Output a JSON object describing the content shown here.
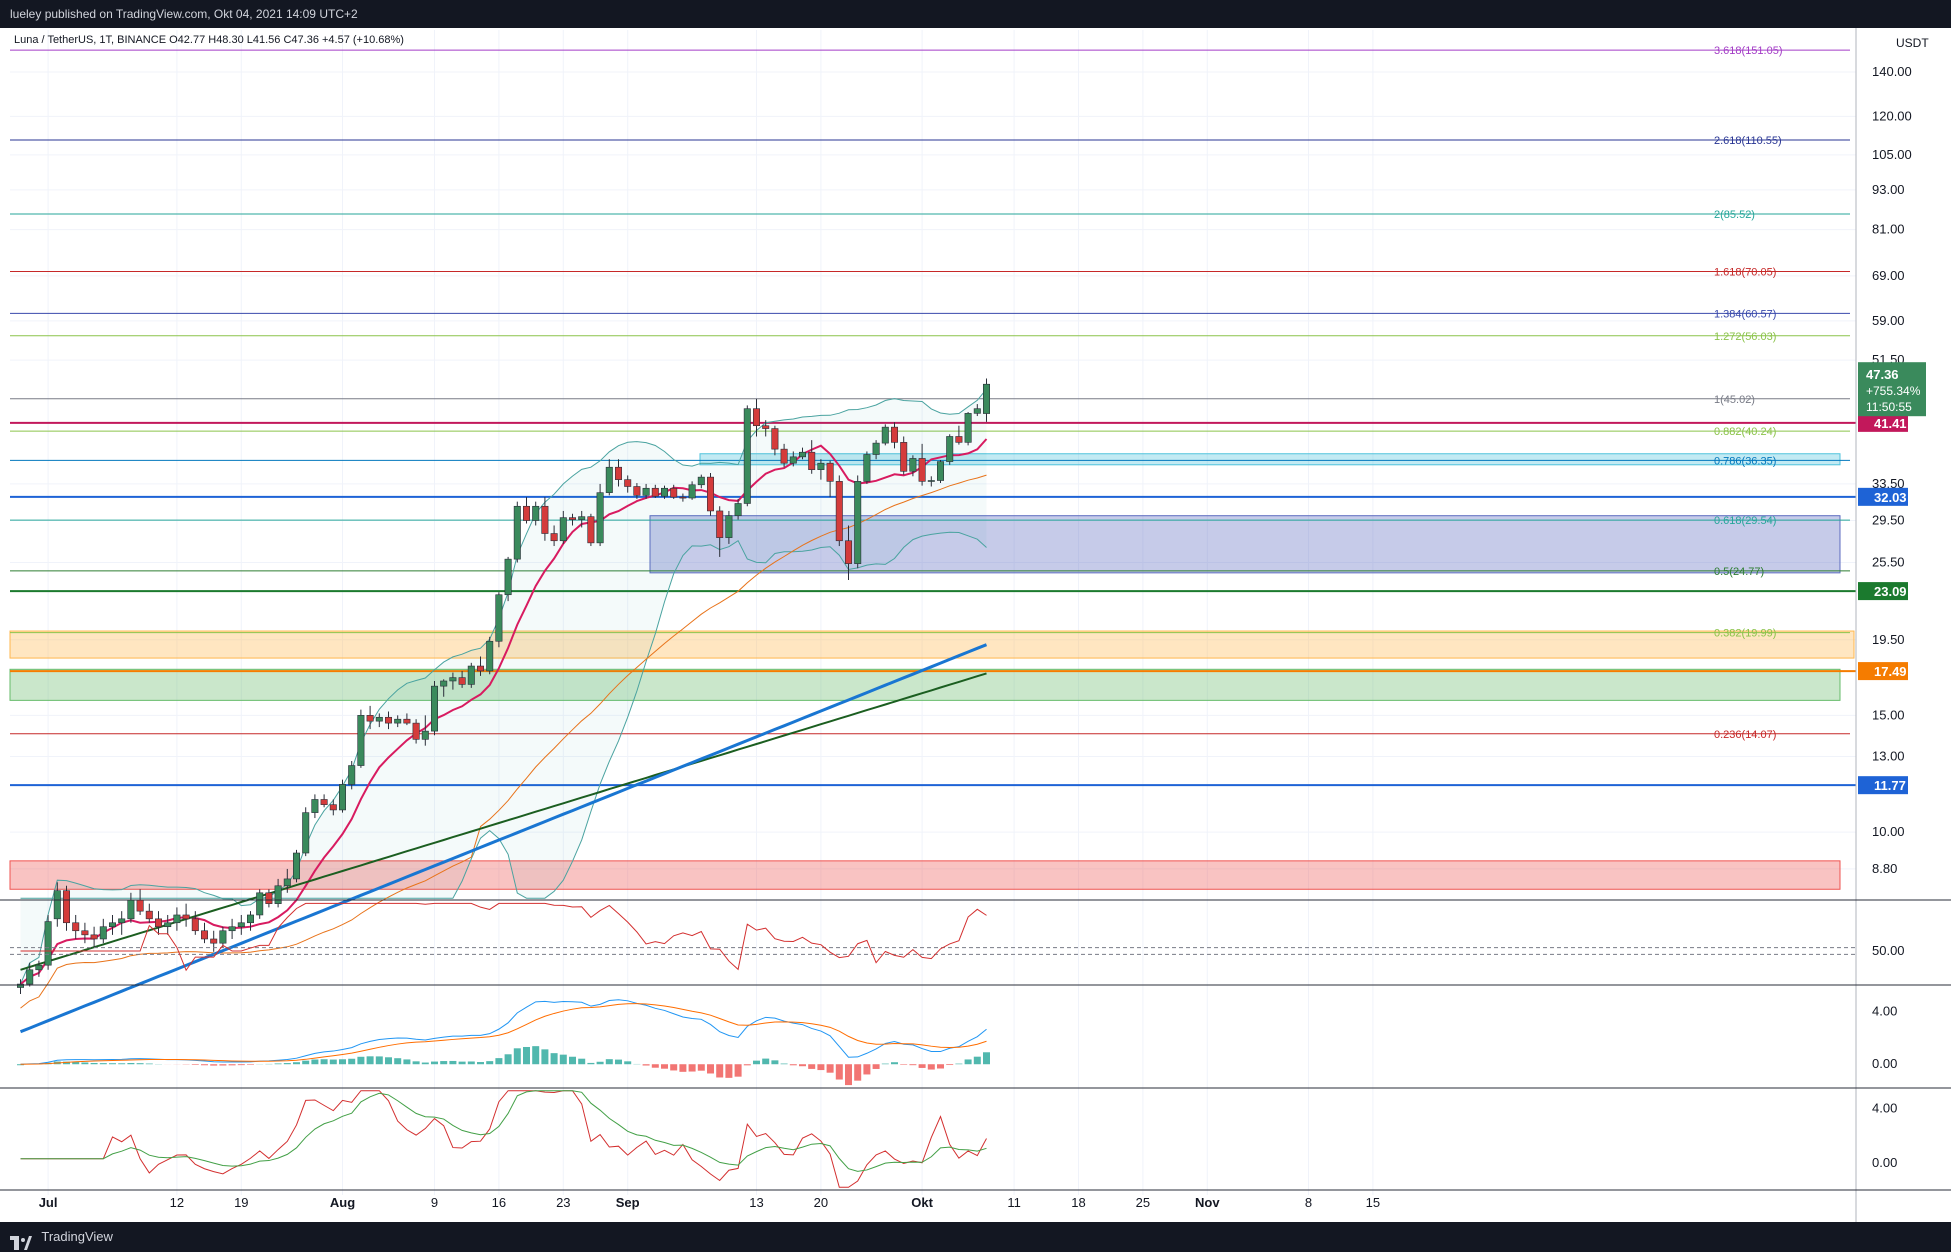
{
  "header": {
    "published": "lueley published on TradingView.com, Okt 04, 2021 14:09 UTC+2"
  },
  "footer": {
    "brand": "TradingView",
    "logo_icon": "tradingview-logo-icon"
  },
  "legend": {
    "symbol": "Luna / TetherUS, 1T, BINANCE",
    "ohlc": "O42.77  H48.30  L41.56  C47.36  +4.57 (+10.68%)"
  },
  "colors": {
    "bull": "#3a8a5c",
    "bear": "#d43b3b",
    "blue": "#1e63d6",
    "fib_purple": "#a33cc6",
    "axis_text": "#131722",
    "grid": "#f0f3fa"
  },
  "chart_data": {
    "type": "candlestick",
    "currency": "USDT",
    "y_scale": "log",
    "price_axis_ticks": [
      "140.00",
      "120.00",
      "105.00",
      "93.00",
      "81.00",
      "69.00",
      "59.00",
      "51.50",
      "33.50",
      "29.50",
      "25.50",
      "19.50",
      "15.00",
      "13.00",
      "10.00",
      "8.80"
    ],
    "time_axis_ticks": [
      "Jul",
      "12",
      "19",
      "Aug",
      "9",
      "16",
      "23",
      "Sep",
      "13",
      "20",
      "Okt",
      "11",
      "18",
      "25",
      "Nov",
      "8",
      "15"
    ],
    "last_price": {
      "price": "47.36",
      "change": "+755.34%",
      "countdown": "11:50:55"
    },
    "price_badges": [
      {
        "label": "41.41",
        "price": 41.41,
        "color": "#c2185b"
      },
      {
        "label": "32.03",
        "price": 32.03,
        "color": "#1e63d6"
      },
      {
        "label": "23.09",
        "price": 23.09,
        "color": "#1b7a2e"
      },
      {
        "label": "17.49",
        "price": 17.49,
        "color": "#f57c00"
      },
      {
        "label": "11.77",
        "price": 11.77,
        "color": "#1e63d6"
      }
    ],
    "fib_levels": [
      {
        "label": "3.618(151.05)",
        "price": 151.05,
        "color": "#a33cc6"
      },
      {
        "label": "2.618(110.55)",
        "price": 110.55,
        "color": "#283593"
      },
      {
        "label": "2(85.52)",
        "price": 85.52,
        "color": "#26a69a"
      },
      {
        "label": "1.618(70.05)",
        "price": 70.05,
        "color": "#c62828"
      },
      {
        "label": "1.384(60.57)",
        "price": 60.57,
        "color": "#3949ab"
      },
      {
        "label": "1.272(56.03)",
        "price": 56.03,
        "color": "#8bc34a"
      },
      {
        "label": "1(45.02)",
        "price": 45.02,
        "color": "#787b86"
      },
      {
        "label": "0.882(40.24)",
        "price": 40.24,
        "color": "#8bc34a"
      },
      {
        "label": "0.786(36.35)",
        "price": 36.35,
        "color": "#0277bd"
      },
      {
        "label": "0.618(29.54)",
        "price": 29.54,
        "color": "#26a69a"
      },
      {
        "label": "0.5(24.77)",
        "price": 24.77,
        "color": "#2e7d32"
      },
      {
        "label": "0.382(19.99)",
        "price": 19.99,
        "color": "#8bc34a"
      },
      {
        "label": "0.236(14.07)",
        "price": 14.07,
        "color": "#c62828"
      }
    ],
    "zones": [
      {
        "from": 35.8,
        "to": 37.2,
        "color": "#4fc3dc"
      },
      {
        "from": 24.6,
        "to": 30.0,
        "color": "#5c6bc0"
      },
      {
        "from": 18.3,
        "to": 20.1,
        "color": "#ffb74d"
      },
      {
        "from": 15.8,
        "to": 17.6,
        "color": "#66bb6a"
      },
      {
        "from": 8.2,
        "to": 9.05,
        "color": "#ef5350"
      }
    ],
    "candles": [
      [
        5.83,
        6.0,
        5.7,
        5.9
      ],
      [
        5.9,
        6.35,
        5.85,
        6.2
      ],
      [
        6.2,
        6.4,
        6.05,
        6.3
      ],
      [
        6.3,
        7.5,
        6.2,
        7.33
      ],
      [
        7.4,
        8.4,
        7.2,
        8.16
      ],
      [
        8.16,
        8.3,
        7.1,
        7.3
      ],
      [
        7.3,
        7.5,
        6.9,
        7.1
      ],
      [
        7.1,
        7.3,
        6.8,
        7.0
      ],
      [
        7.0,
        7.2,
        6.7,
        6.9
      ],
      [
        6.9,
        7.4,
        6.8,
        7.2
      ],
      [
        7.2,
        7.5,
        7.0,
        7.3
      ],
      [
        7.3,
        7.6,
        7.0,
        7.4
      ],
      [
        7.4,
        8.1,
        7.3,
        7.9
      ],
      [
        7.9,
        8.2,
        7.5,
        7.6
      ],
      [
        7.6,
        7.8,
        7.3,
        7.4
      ],
      [
        7.4,
        7.6,
        7.0,
        7.2
      ],
      [
        7.2,
        7.5,
        7.0,
        7.3
      ],
      [
        7.3,
        7.7,
        7.1,
        7.5
      ],
      [
        7.5,
        7.8,
        7.2,
        7.4
      ],
      [
        7.4,
        7.6,
        7.0,
        7.1
      ],
      [
        7.1,
        7.3,
        6.8,
        6.9
      ],
      [
        6.9,
        7.1,
        6.6,
        6.8
      ],
      [
        6.8,
        7.2,
        6.7,
        7.1
      ],
      [
        7.1,
        7.4,
        6.9,
        7.2
      ],
      [
        7.2,
        7.5,
        7.0,
        7.3
      ],
      [
        7.3,
        7.6,
        7.1,
        7.5
      ],
      [
        7.5,
        8.2,
        7.4,
        8.1
      ],
      [
        8.1,
        8.2,
        7.7,
        7.8
      ],
      [
        7.8,
        8.5,
        7.7,
        8.3
      ],
      [
        8.3,
        8.8,
        8.1,
        8.5
      ],
      [
        8.5,
        9.4,
        8.4,
        9.3
      ],
      [
        9.3,
        10.9,
        9.2,
        10.7
      ],
      [
        10.7,
        11.4,
        10.5,
        11.2
      ],
      [
        11.2,
        11.4,
        10.9,
        11.0
      ],
      [
        11.0,
        11.2,
        10.6,
        10.8
      ],
      [
        10.8,
        12.0,
        10.7,
        11.8
      ],
      [
        11.8,
        12.8,
        11.6,
        12.6
      ],
      [
        12.6,
        15.3,
        12.5,
        15.0
      ],
      [
        15.0,
        15.5,
        14.3,
        14.7
      ],
      [
        14.7,
        15.1,
        14.4,
        14.9
      ],
      [
        14.9,
        15.2,
        14.3,
        14.6
      ],
      [
        14.6,
        15.0,
        14.4,
        14.8
      ],
      [
        14.8,
        15.1,
        14.5,
        14.6
      ],
      [
        14.6,
        14.8,
        13.6,
        13.8
      ],
      [
        13.8,
        15.0,
        13.5,
        14.2
      ],
      [
        14.2,
        16.9,
        14.0,
        16.6
      ],
      [
        16.6,
        17.0,
        16.0,
        16.9
      ],
      [
        16.9,
        17.4,
        16.4,
        17.1
      ],
      [
        17.1,
        17.5,
        16.5,
        16.7
      ],
      [
        16.7,
        18.0,
        16.5,
        17.8
      ],
      [
        17.8,
        18.4,
        17.2,
        17.5
      ],
      [
        17.5,
        19.7,
        17.3,
        19.4
      ],
      [
        19.4,
        23.0,
        19.0,
        22.8
      ],
      [
        22.8,
        26.0,
        22.3,
        25.8
      ],
      [
        25.8,
        31.5,
        25.5,
        31.0
      ],
      [
        31.0,
        32.0,
        29.2,
        29.5
      ],
      [
        29.5,
        31.5,
        29.0,
        31.0
      ],
      [
        31.0,
        32.0,
        27.5,
        28.2
      ],
      [
        28.2,
        29.0,
        27.0,
        27.5
      ],
      [
        27.5,
        30.5,
        27.2,
        29.8
      ],
      [
        29.8,
        30.2,
        29.0,
        29.6
      ],
      [
        29.6,
        30.5,
        28.8,
        29.9
      ],
      [
        29.9,
        30.2,
        27.0,
        27.3
      ],
      [
        27.3,
        33.5,
        27.0,
        32.5
      ],
      [
        32.5,
        36.5,
        32.2,
        35.5
      ],
      [
        35.5,
        36.5,
        33.2,
        34.0
      ],
      [
        34.0,
        34.5,
        32.5,
        33.2
      ],
      [
        33.2,
        33.6,
        31.8,
        32.2
      ],
      [
        32.2,
        33.5,
        31.8,
        33.0
      ],
      [
        33.0,
        33.4,
        31.9,
        32.1
      ],
      [
        32.1,
        33.3,
        31.8,
        33.0
      ],
      [
        33.0,
        33.4,
        31.8,
        32.0
      ],
      [
        32.0,
        32.4,
        31.5,
        31.9
      ],
      [
        31.9,
        33.8,
        31.7,
        33.4
      ],
      [
        33.4,
        34.6,
        33.0,
        34.3
      ],
      [
        34.3,
        34.8,
        30.0,
        30.5
      ],
      [
        30.5,
        31.0,
        26.0,
        27.8
      ],
      [
        27.8,
        30.5,
        27.2,
        30.0
      ],
      [
        30.0,
        31.8,
        29.6,
        31.3
      ],
      [
        31.3,
        44.0,
        31.0,
        43.5
      ],
      [
        43.5,
        45.0,
        39.5,
        41.0
      ],
      [
        41.0,
        41.8,
        39.5,
        40.6
      ],
      [
        40.6,
        41.0,
        37.0,
        37.8
      ],
      [
        37.8,
        38.5,
        35.5,
        36.0
      ],
      [
        36.0,
        37.5,
        35.6,
        36.8
      ],
      [
        36.8,
        38.0,
        36.5,
        37.4
      ],
      [
        37.4,
        39.0,
        34.7,
        35.2
      ],
      [
        35.2,
        36.5,
        34.0,
        36.0
      ],
      [
        36.0,
        36.3,
        32.0,
        33.8
      ],
      [
        33.8,
        34.5,
        27.0,
        27.5
      ],
      [
        27.5,
        29.0,
        24.0,
        25.4
      ],
      [
        25.4,
        34.5,
        25.0,
        33.8
      ],
      [
        33.8,
        37.5,
        33.5,
        37.1
      ],
      [
        37.1,
        39.0,
        36.5,
        38.6
      ],
      [
        38.6,
        41.2,
        38.3,
        40.8
      ],
      [
        40.8,
        41.5,
        37.9,
        38.7
      ],
      [
        38.7,
        39.5,
        34.6,
        35.0
      ],
      [
        35.0,
        37.0,
        34.4,
        36.6
      ],
      [
        36.6,
        38.5,
        33.3,
        33.8
      ],
      [
        33.8,
        34.4,
        33.2,
        33.9
      ],
      [
        33.9,
        36.4,
        33.6,
        36.2
      ],
      [
        36.2,
        39.8,
        35.8,
        39.5
      ],
      [
        39.5,
        41.0,
        38.4,
        38.7
      ],
      [
        38.7,
        43.0,
        38.3,
        42.8
      ],
      [
        42.8,
        44.2,
        42.4,
        43.5
      ],
      [
        42.77,
        48.3,
        41.56,
        47.36
      ]
    ],
    "oscillators": [
      {
        "name": "RSI",
        "ticks": [
          "50.00"
        ]
      },
      {
        "name": "MACD",
        "ticks": [
          "4.00",
          "0.00"
        ]
      },
      {
        "name": "DMI",
        "ticks": [
          "4.00",
          "0.00"
        ]
      }
    ]
  }
}
